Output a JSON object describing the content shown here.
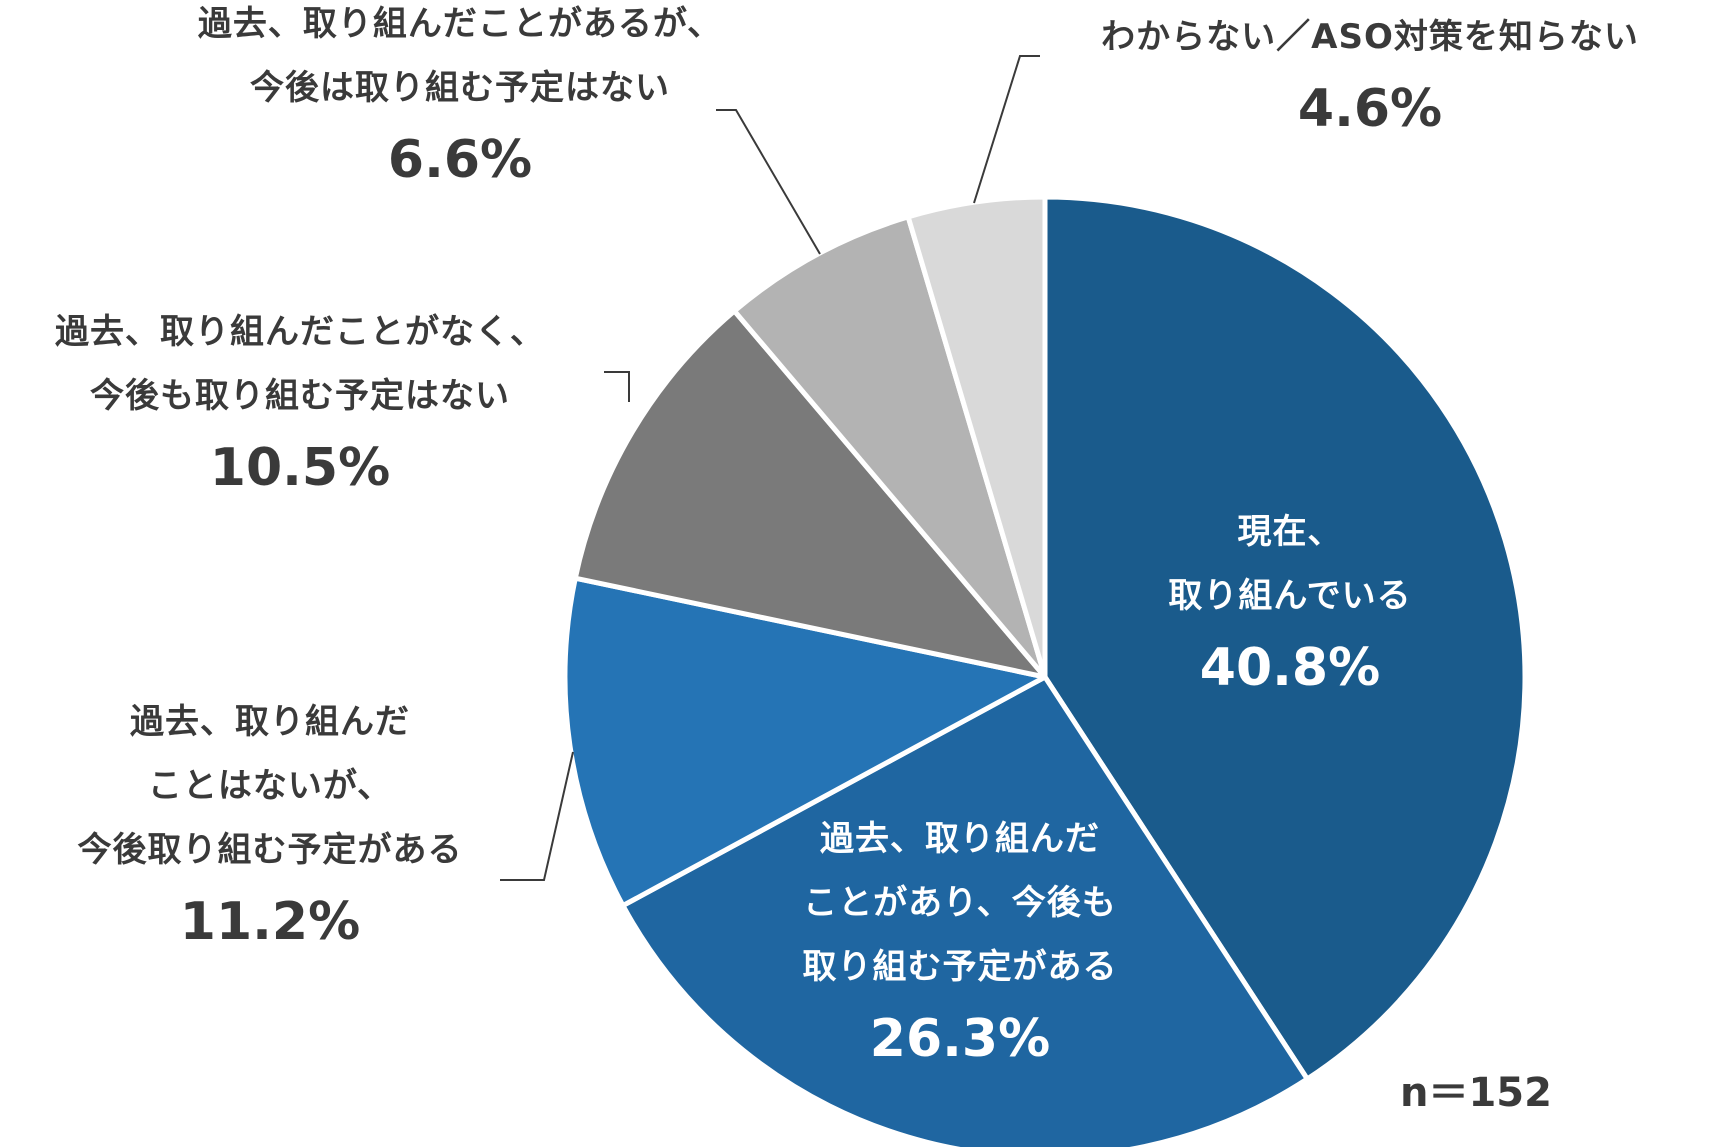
{
  "chart_data": {
    "type": "pie",
    "sample_size": "n＝152",
    "start_angle_deg": 0,
    "direction": "clockwise",
    "slices": [
      {
        "lines": [
          "現在、",
          "取り組んでいる"
        ],
        "value": 40.8,
        "pct_label": "40.8%",
        "color": "#1a5b8c",
        "label_inside": true
      },
      {
        "lines": [
          "過去、取り組んだ",
          "ことがあり、今後も",
          "取り組む予定がある"
        ],
        "value": 26.3,
        "pct_label": "26.3%",
        "color": "#1f66a1",
        "label_inside": true
      },
      {
        "lines": [
          "過去、取り組んだ",
          "ことはないが、",
          "今後取り組む予定がある"
        ],
        "value": 11.2,
        "pct_label": "11.2%",
        "color": "#2574b5",
        "label_inside": false
      },
      {
        "lines": [
          "過去、取り組んだことがなく、",
          "今後も取り組む予定はない"
        ],
        "value": 10.5,
        "pct_label": "10.5%",
        "color": "#7a7a7a",
        "label_inside": false
      },
      {
        "lines": [
          "過去、取り組んだことがあるが、",
          "今後は取り組む予定はない"
        ],
        "value": 6.6,
        "pct_label": "6.6%",
        "color": "#b3b3b3",
        "label_inside": false
      },
      {
        "lines": [
          "わからない／ASO対策を知らない"
        ],
        "value": 4.6,
        "pct_label": "4.6%",
        "color": "#d9d9d9",
        "label_inside": false
      }
    ]
  }
}
